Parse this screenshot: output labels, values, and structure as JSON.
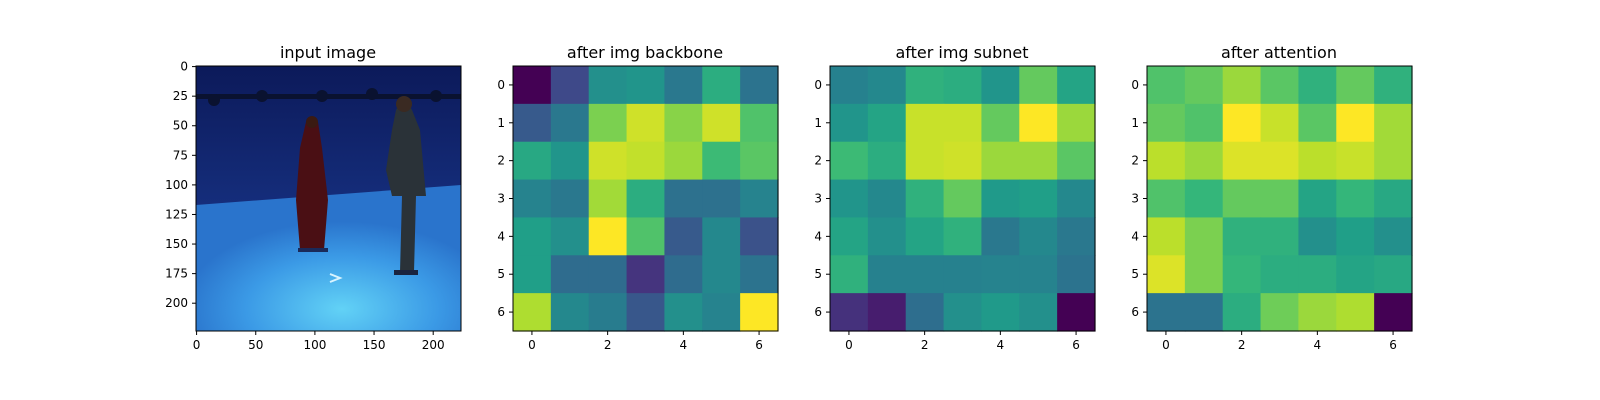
{
  "chart_data": [
    {
      "type": "image",
      "title": "input image",
      "xticks": [
        0,
        50,
        100,
        150,
        200
      ],
      "yticks": [
        0,
        25,
        50,
        75,
        100,
        125,
        150,
        175,
        200
      ],
      "xlim": [
        -0.5,
        223.5
      ],
      "ylim": [
        223.5,
        -0.5
      ],
      "image_content": "photo: two people standing in a blue motion-capture studio"
    },
    {
      "type": "heatmap",
      "title": "after img backbone",
      "colormap": "viridis",
      "xticks": [
        0,
        2,
        4,
        6
      ],
      "yticks": [
        0,
        1,
        2,
        3,
        4,
        5,
        6
      ],
      "values": [
        [
          0.0,
          0.22,
          0.5,
          0.52,
          0.4,
          0.62,
          0.38
        ],
        [
          0.28,
          0.4,
          0.8,
          0.93,
          0.82,
          0.93,
          0.72
        ],
        [
          0.6,
          0.52,
          0.93,
          0.91,
          0.85,
          0.68,
          0.74
        ],
        [
          0.45,
          0.4,
          0.86,
          0.62,
          0.37,
          0.37,
          0.45
        ],
        [
          0.56,
          0.5,
          1.0,
          0.72,
          0.28,
          0.47,
          0.25
        ],
        [
          0.56,
          0.35,
          0.35,
          0.15,
          0.35,
          0.47,
          0.38
        ],
        [
          0.88,
          0.47,
          0.42,
          0.27,
          0.5,
          0.45,
          1.0
        ]
      ]
    },
    {
      "type": "heatmap",
      "title": "after img subnet",
      "colormap": "viridis",
      "xticks": [
        0,
        2,
        4,
        6
      ],
      "yticks": [
        0,
        1,
        2,
        3,
        4,
        5,
        6
      ],
      "values": [
        [
          0.44,
          0.47,
          0.64,
          0.62,
          0.52,
          0.76,
          0.58
        ],
        [
          0.52,
          0.58,
          0.92,
          0.92,
          0.76,
          1.0,
          0.85
        ],
        [
          0.68,
          0.62,
          0.92,
          0.93,
          0.85,
          0.85,
          0.74
        ],
        [
          0.52,
          0.47,
          0.64,
          0.76,
          0.54,
          0.56,
          0.47
        ],
        [
          0.58,
          0.5,
          0.58,
          0.64,
          0.4,
          0.47,
          0.4
        ],
        [
          0.64,
          0.44,
          0.44,
          0.44,
          0.45,
          0.45,
          0.38
        ],
        [
          0.14,
          0.08,
          0.36,
          0.5,
          0.54,
          0.5,
          0.0
        ]
      ]
    },
    {
      "type": "heatmap",
      "title": "after attention",
      "colormap": "viridis",
      "xticks": [
        0,
        2,
        4,
        6
      ],
      "yticks": [
        0,
        1,
        2,
        3,
        4,
        5,
        6
      ],
      "values": [
        [
          0.72,
          0.76,
          0.85,
          0.74,
          0.64,
          0.76,
          0.64
        ],
        [
          0.76,
          0.72,
          1.0,
          0.92,
          0.74,
          1.0,
          0.86
        ],
        [
          0.9,
          0.85,
          0.95,
          0.95,
          0.9,
          0.92,
          0.86
        ],
        [
          0.72,
          0.66,
          0.76,
          0.76,
          0.58,
          0.66,
          0.6
        ],
        [
          0.9,
          0.8,
          0.64,
          0.64,
          0.5,
          0.56,
          0.5
        ],
        [
          0.95,
          0.8,
          0.66,
          0.62,
          0.62,
          0.58,
          0.6
        ],
        [
          0.38,
          0.38,
          0.62,
          0.78,
          0.85,
          0.88,
          0.0
        ]
      ]
    }
  ]
}
